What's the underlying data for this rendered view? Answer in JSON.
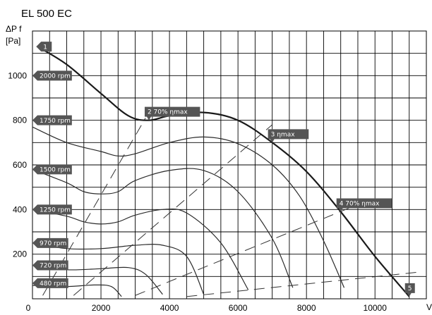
{
  "title": "EL 500 EC",
  "y_axis": {
    "label_line1": "ΔP f",
    "label_line2": "[Pa]"
  },
  "x_axis": {
    "label": "V"
  },
  "chart_data": {
    "type": "line",
    "title": "EL 500 EC",
    "ylabel": "ΔP f [Pa]",
    "xlabel": "V",
    "xlim": [
      0,
      11500
    ],
    "ylim": [
      0,
      1200
    ],
    "x_ticks": [
      0,
      2000,
      4000,
      6000,
      8000,
      10000
    ],
    "y_ticks": [
      200,
      400,
      600,
      800,
      1000
    ],
    "grid": true,
    "series": [
      {
        "name": "2000 rpm",
        "label_y": 1000,
        "x": [
          150,
          1000,
          2000,
          2800,
          3400,
          4000,
          5000,
          6000,
          7000,
          8000,
          9000,
          10000,
          11000
        ],
        "y": [
          1130,
          1050,
          920,
          820,
          800,
          820,
          835,
          800,
          700,
          570,
          390,
          190,
          10
        ]
      },
      {
        "name": "1750 rpm",
        "label_y": 800,
        "x": [
          0,
          1000,
          2000,
          2500,
          3000,
          4000,
          5000,
          6000,
          7000,
          7800,
          8500,
          9100
        ],
        "y": [
          770,
          700,
          660,
          640,
          650,
          700,
          725,
          695,
          600,
          460,
          260,
          50
        ]
      },
      {
        "name": "1500 rpm",
        "label_y": 580,
        "x": [
          0,
          1000,
          1500,
          2000,
          2500,
          3000,
          4000,
          5000,
          6000,
          7000,
          7600
        ],
        "y": [
          580,
          520,
          480,
          470,
          480,
          530,
          575,
          575,
          480,
          270,
          50
        ]
      },
      {
        "name": "1250 rpm",
        "label_y": 400,
        "x": [
          0,
          1000,
          1500,
          2000,
          2500,
          3000,
          3800,
          4500,
          5500,
          6300
        ],
        "y": [
          400,
          370,
          345,
          335,
          345,
          375,
          400,
          385,
          250,
          40
        ]
      },
      {
        "name": "970 rpm",
        "label_y": 250,
        "x": [
          0,
          1000,
          2000,
          3000,
          3800,
          4500,
          5000
        ],
        "y": [
          250,
          225,
          225,
          240,
          240,
          190,
          20
        ]
      },
      {
        "name": "720 rpm",
        "label_y": 150,
        "x": [
          0,
          1000,
          2000,
          2800,
          3300,
          3800
        ],
        "y": [
          150,
          130,
          135,
          140,
          110,
          20
        ]
      },
      {
        "name": "480 rpm",
        "label_y": 70,
        "x": [
          0,
          1000,
          1800,
          2300,
          2600
        ],
        "y": [
          60,
          55,
          62,
          55,
          10
        ]
      }
    ],
    "efficiency_lines": [
      {
        "x": [
          300,
          3300
        ],
        "y": [
          15,
          810
        ]
      },
      {
        "x": [
          1200,
          7000
        ],
        "y": [
          15,
          780
        ]
      },
      {
        "x": [
          3000,
          9300
        ],
        "y": [
          15,
          410
        ]
      },
      {
        "x": [
          4500,
          11300
        ],
        "y": [
          10,
          120
        ]
      }
    ],
    "annotations": [
      {
        "id": "1",
        "label": "",
        "x": 150,
        "y": 1130
      },
      {
        "id": "2",
        "label": "70% ηmax",
        "x": 3400,
        "y": 800
      },
      {
        "id": "3",
        "label": "ηmax",
        "x": 7000,
        "y": 700
      },
      {
        "id": "4",
        "label": "70% ηmax",
        "x": 9000,
        "y": 390
      },
      {
        "id": "5",
        "label": "",
        "x": 11000,
        "y": 10
      }
    ]
  }
}
